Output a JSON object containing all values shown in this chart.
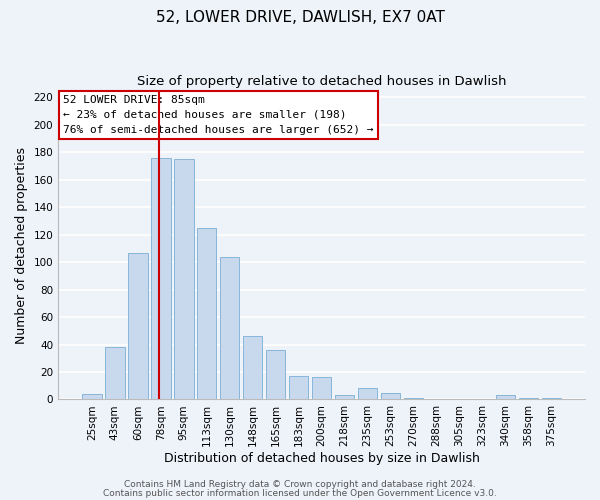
{
  "title": "52, LOWER DRIVE, DAWLISH, EX7 0AT",
  "subtitle": "Size of property relative to detached houses in Dawlish",
  "xlabel": "Distribution of detached houses by size in Dawlish",
  "ylabel": "Number of detached properties",
  "categories": [
    "25sqm",
    "43sqm",
    "60sqm",
    "78sqm",
    "95sqm",
    "113sqm",
    "130sqm",
    "148sqm",
    "165sqm",
    "183sqm",
    "200sqm",
    "218sqm",
    "235sqm",
    "253sqm",
    "270sqm",
    "288sqm",
    "305sqm",
    "323sqm",
    "340sqm",
    "358sqm",
    "375sqm"
  ],
  "values": [
    4,
    38,
    107,
    176,
    175,
    125,
    104,
    46,
    36,
    17,
    16,
    3,
    8,
    5,
    1,
    0,
    0,
    0,
    3,
    1,
    1
  ],
  "bar_color": "#c8d9ee",
  "bar_edge_color": "#7bafd4",
  "bar_width": 0.85,
  "ylim": [
    0,
    225
  ],
  "yticks": [
    0,
    20,
    40,
    60,
    80,
    100,
    120,
    140,
    160,
    180,
    200,
    220
  ],
  "red_line_label": "52 LOWER DRIVE: 85sqm",
  "annotation_line1": "← 23% of detached houses are smaller (198)",
  "annotation_line2": "76% of semi-detached houses are larger (652) →",
  "annotation_box_color": "#ffffff",
  "annotation_box_edge": "#cc0000",
  "footer1": "Contains HM Land Registry data © Crown copyright and database right 2024.",
  "footer2": "Contains public sector information licensed under the Open Government Licence v3.0.",
  "background_color": "#eef2f9",
  "grid_color": "#ffffff",
  "title_fontsize": 11,
  "subtitle_fontsize": 9.5,
  "axis_label_fontsize": 9,
  "tick_fontsize": 7.5,
  "annotation_fontsize": 8,
  "footer_fontsize": 6.5
}
